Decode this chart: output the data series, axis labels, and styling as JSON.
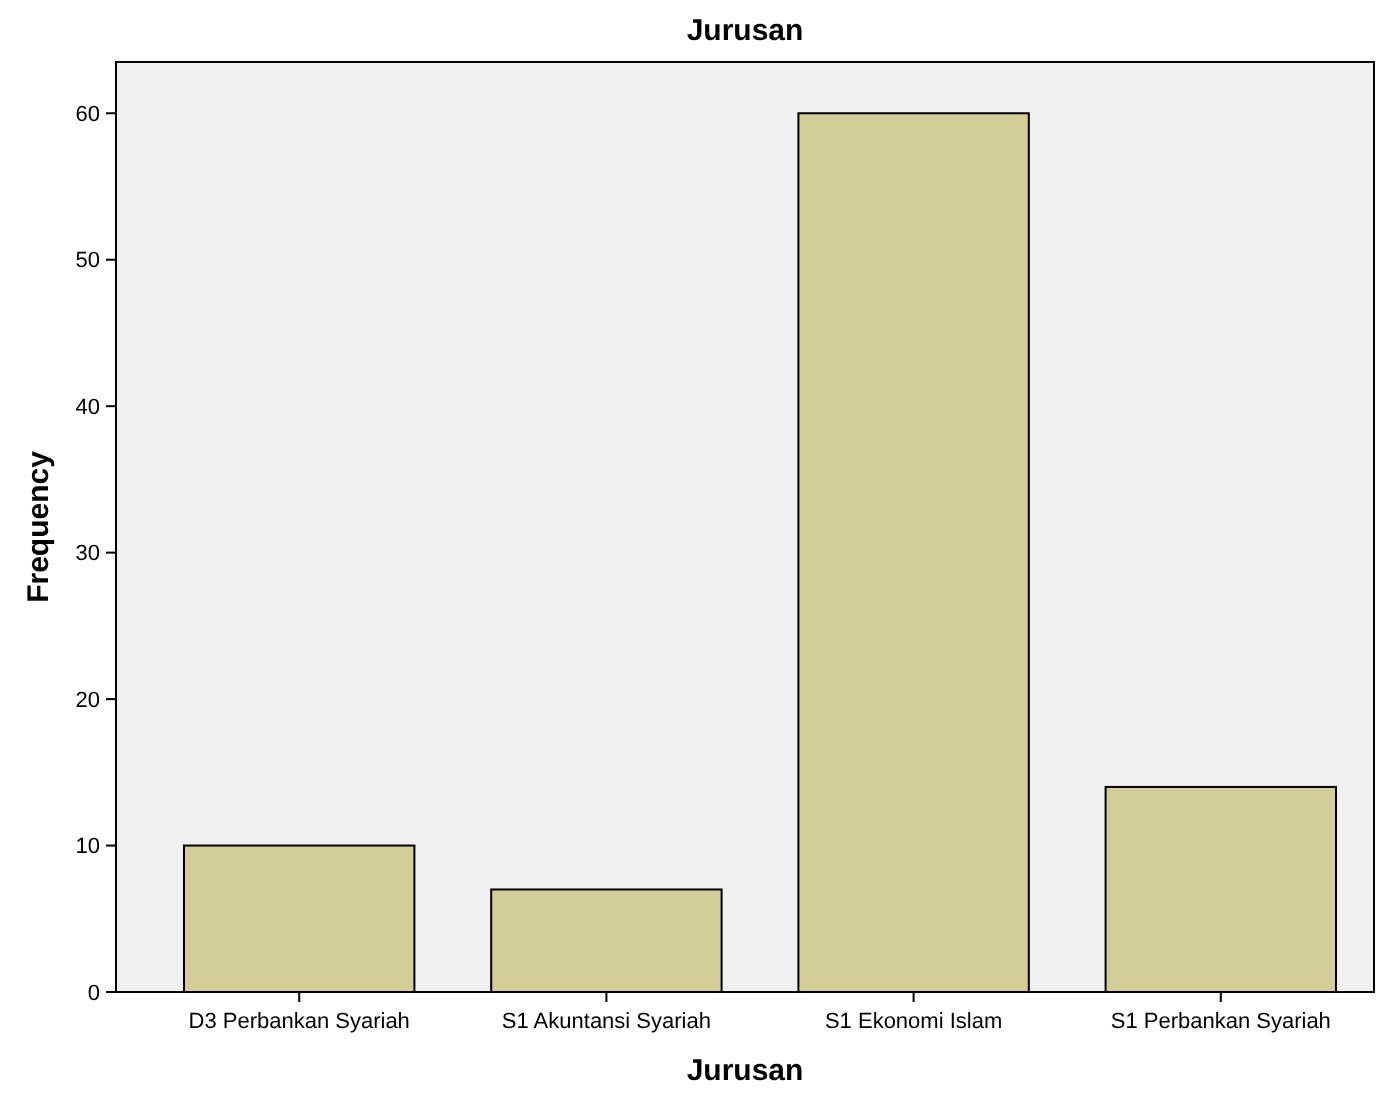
{
  "chart_data": {
    "type": "bar",
    "title": "Jurusan",
    "xlabel": "Jurusan",
    "ylabel": "Frequency",
    "categories": [
      "D3 Perbankan Syariah",
      "S1 Akuntansi Syariah",
      "S1 Ekonomi Islam",
      "S1 Perbankan Syariah"
    ],
    "values": [
      10,
      7,
      60,
      14
    ],
    "color": "#d3ce97",
    "ylim": [
      0,
      63.5
    ],
    "yticks": [
      0,
      10,
      20,
      30,
      40,
      50,
      60
    ]
  }
}
